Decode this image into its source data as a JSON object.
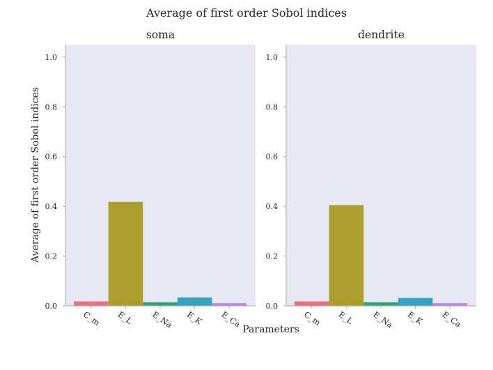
{
  "chart_data": {
    "type": "bar",
    "title": "Average of first order Sobol indices",
    "xlabel": "Parameters",
    "ylabel": "Average of first order Sobol indices",
    "ylim": [
      0,
      1.05
    ],
    "yticks": [
      "0.0",
      "0.2",
      "0.4",
      "0.6",
      "0.8",
      "1.0"
    ],
    "categories": [
      "C_m",
      "E_L",
      "E_Na",
      "E_K",
      "E_Ca"
    ],
    "colors": [
      "#f07080",
      "#ad9e30",
      "#36a47a",
      "#38a3c0",
      "#be86e6"
    ],
    "grid": false,
    "panels": [
      {
        "title": "soma",
        "values": [
          0.018,
          0.418,
          0.015,
          0.034,
          0.011
        ]
      },
      {
        "title": "dendrite",
        "values": [
          0.018,
          0.405,
          0.015,
          0.032,
          0.011
        ]
      }
    ]
  }
}
